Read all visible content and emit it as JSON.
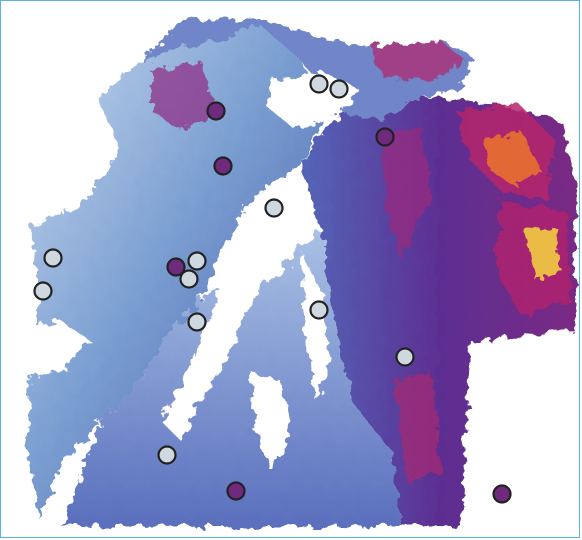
{
  "map": {
    "type": "raster-heatmap",
    "border_color": "#56b4e9",
    "background_color": "#ffffff",
    "colormap": [
      "#ffffff",
      "#c6d8ee",
      "#7b9fd1",
      "#4a5cae",
      "#6a2a8f",
      "#b5246b",
      "#f07a26",
      "#fde23a"
    ],
    "legend": null,
    "title": "",
    "xlabel": "",
    "ylabel": ""
  },
  "markers": {
    "observed_color": "#cfd8df",
    "predicted_color": "#6f2a7e",
    "outline_color": "#222222",
    "site_count": 17,
    "light_sites": 11,
    "dark_sites": 6
  }
}
